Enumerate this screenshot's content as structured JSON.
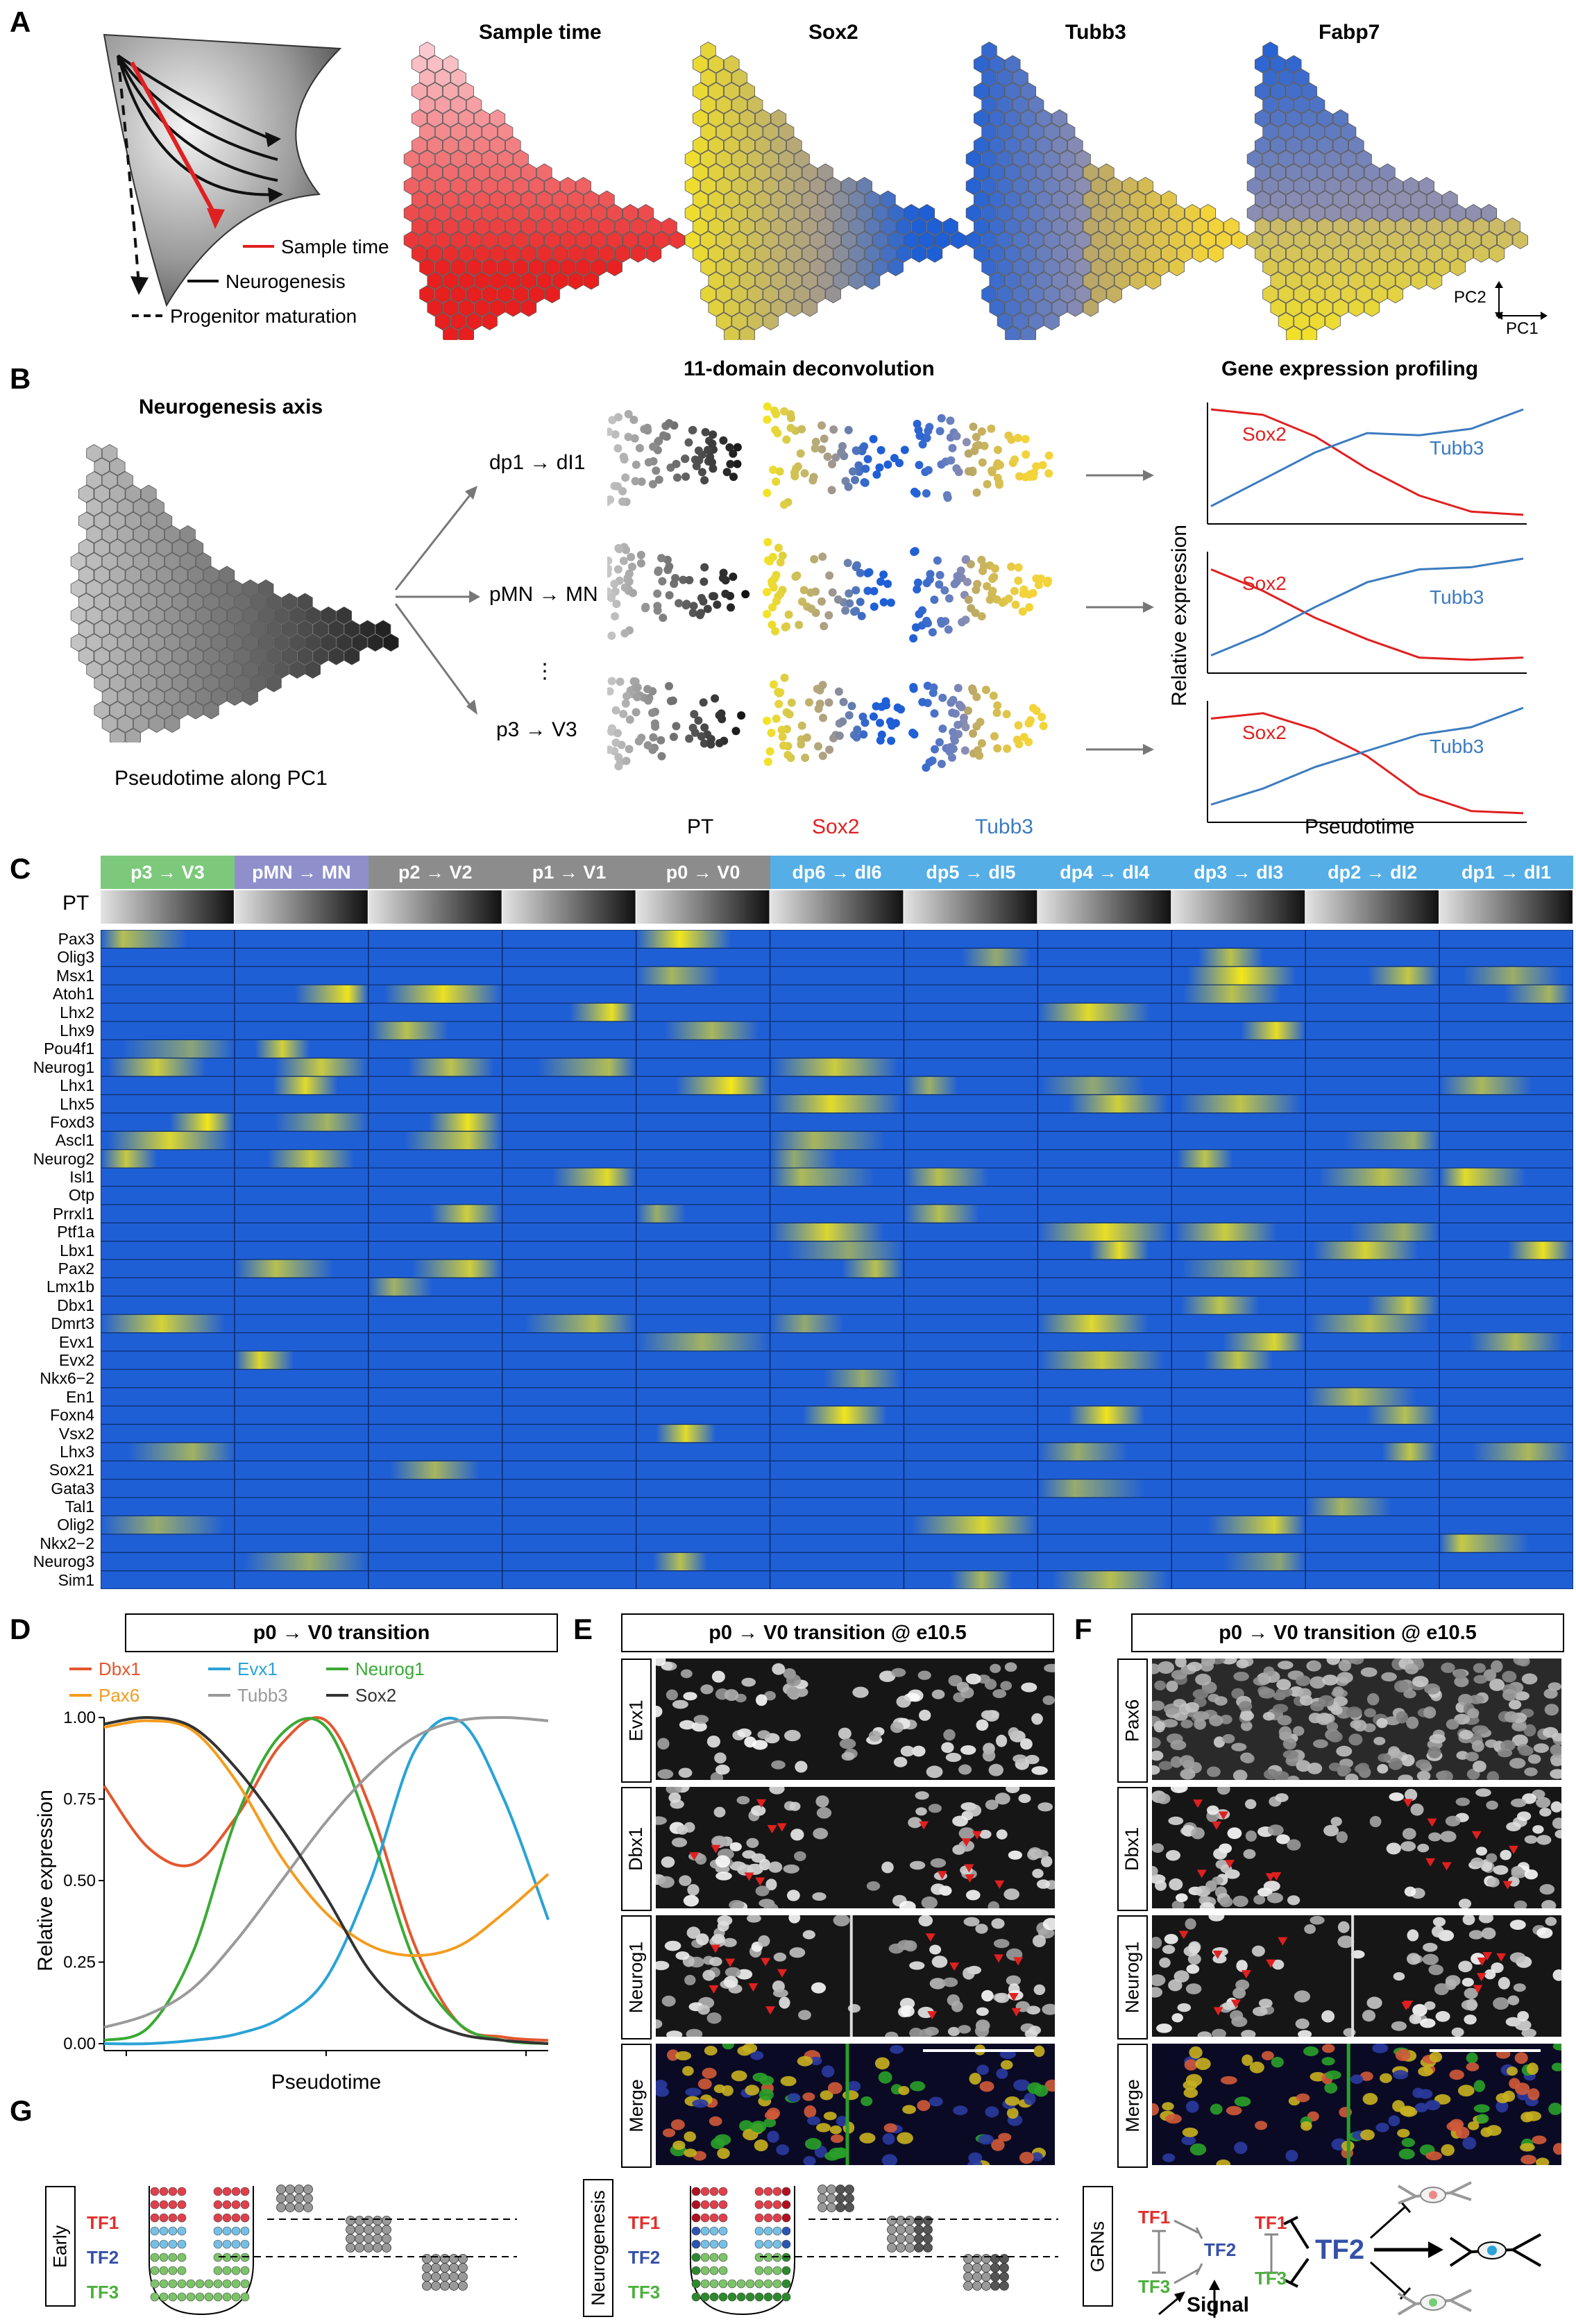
{
  "panel_letters": [
    "A",
    "B",
    "C",
    "D",
    "E",
    "F",
    "G"
  ],
  "panelA": {
    "legend": {
      "sample_time": "Sample time",
      "neurogenesis": "Neurogenesis",
      "progenitor": "Progenitor maturation"
    },
    "hex_titles": [
      "Sample time",
      "Sox2",
      "Tubb3",
      "Fabp7"
    ],
    "axes": {
      "pc2": "PC2",
      "pc1": "PC1"
    }
  },
  "panelB": {
    "title_axis": "Neurogenesis axis",
    "caption": "Pseudotime along PC1",
    "deconv_title": "11-domain deconvolution",
    "profiling_title": "Gene expression profiling",
    "transitions": [
      "dp1 → dI1",
      "pMN → MN",
      "p3 → V3"
    ],
    "ellipsis": "⋮",
    "column_labels": [
      "PT",
      "Sox2",
      "Tubb3"
    ],
    "ylabel": "Relative expression",
    "xlabel": "Pseudotime",
    "gene_a": "Sox2",
    "gene_b": "Tubb3"
  },
  "panelC": {
    "pt_label": "PT",
    "domains": [
      {
        "label": "p3 → V3",
        "color": "#7cc97b"
      },
      {
        "label": "pMN → MN",
        "color": "#8f8fcc"
      },
      {
        "label": "p2 → V2",
        "color": "#8c8c8c"
      },
      {
        "label": "p1 → V1",
        "color": "#8c8c8c"
      },
      {
        "label": "p0 → V0",
        "color": "#8c8c8c"
      },
      {
        "label": "dp6 → dI6",
        "color": "#55aee6"
      },
      {
        "label": "dp5 → dI5",
        "color": "#55aee6"
      },
      {
        "label": "dp4 → dI4",
        "color": "#55aee6"
      },
      {
        "label": "dp3 → dI3",
        "color": "#55aee6"
      },
      {
        "label": "dp2 → dI2",
        "color": "#55aee6"
      },
      {
        "label": "dp1 → dI1",
        "color": "#55aee6"
      }
    ],
    "genes": [
      "Pax3",
      "Olig3",
      "Msx1",
      "Atoh1",
      "Lhx2",
      "Lhx9",
      "Pou4f1",
      "Neurog1",
      "Lhx1",
      "Lhx5",
      "Foxd3",
      "Ascl1",
      "Neurog2",
      "Isl1",
      "Otp",
      "Prrxl1",
      "Ptf1a",
      "Lbx1",
      "Pax2",
      "Lmx1b",
      "Dbx1",
      "Dmrt3",
      "Evx1",
      "Evx2",
      "Nkx6−2",
      "En1",
      "Foxn4",
      "Vsx2",
      "Lhx3",
      "Sox21",
      "Gata3",
      "Tal1",
      "Olig2",
      "Nkx2−2",
      "Neurog3",
      "Sim1"
    ],
    "colors": {
      "low": "#1f5fd6",
      "high": "#f5e71a"
    }
  },
  "chart_data": {
    "type": "line",
    "title": "p0 → V0 transition",
    "xlabel": "Pseudotime",
    "ylabel": "Relative expression",
    "ylim": [
      0,
      1
    ],
    "yticks": [
      "0.00",
      "0.25",
      "0.50",
      "0.75",
      "1.00"
    ],
    "x": [
      0,
      0.1,
      0.2,
      0.3,
      0.4,
      0.5,
      0.6,
      0.7,
      0.8,
      0.9,
      1.0
    ],
    "series": [
      {
        "name": "Dbx1",
        "color": "#e4572e",
        "values": [
          0.79,
          0.6,
          0.55,
          0.7,
          0.92,
          0.99,
          0.72,
          0.3,
          0.06,
          0.02,
          0.01
        ]
      },
      {
        "name": "Evx1",
        "color": "#29a3d6",
        "values": [
          0,
          0,
          0.01,
          0.03,
          0.08,
          0.2,
          0.5,
          0.9,
          0.99,
          0.75,
          0.38
        ]
      },
      {
        "name": "Neurog1",
        "color": "#3aaa35",
        "values": [
          0.01,
          0.05,
          0.28,
          0.7,
          0.95,
          0.97,
          0.65,
          0.25,
          0.06,
          0.01,
          0
        ]
      },
      {
        "name": "Pax6",
        "color": "#f39c1f",
        "values": [
          0.97,
          0.99,
          0.96,
          0.8,
          0.57,
          0.4,
          0.3,
          0.27,
          0.3,
          0.4,
          0.52
        ]
      },
      {
        "name": "Tubb3",
        "color": "#9a9a9a",
        "values": [
          0.05,
          0.09,
          0.17,
          0.32,
          0.5,
          0.68,
          0.83,
          0.94,
          0.99,
          1.0,
          0.99
        ]
      },
      {
        "name": "Sox2",
        "color": "#333333",
        "values": [
          0.98,
          1.0,
          0.97,
          0.84,
          0.66,
          0.45,
          0.22,
          0.09,
          0.03,
          0.01,
          0
        ]
      }
    ]
  },
  "panelE": {
    "title": "p0 → V0 transition @ e10.5",
    "rows": [
      "Evx1",
      "Dbx1",
      "Neurog1",
      "Merge"
    ]
  },
  "panelF": {
    "title": "p0 → V0 transition @ e10.5",
    "rows": [
      "Pax6",
      "Dbx1",
      "Neurog1",
      "Merge"
    ]
  },
  "panelG": {
    "early": "Early",
    "neurogenesis": "Neurogenesis",
    "grns": "GRNs",
    "tf1": "TF1",
    "tf2": "TF2",
    "tf3": "TF3",
    "signal": "Signal"
  }
}
